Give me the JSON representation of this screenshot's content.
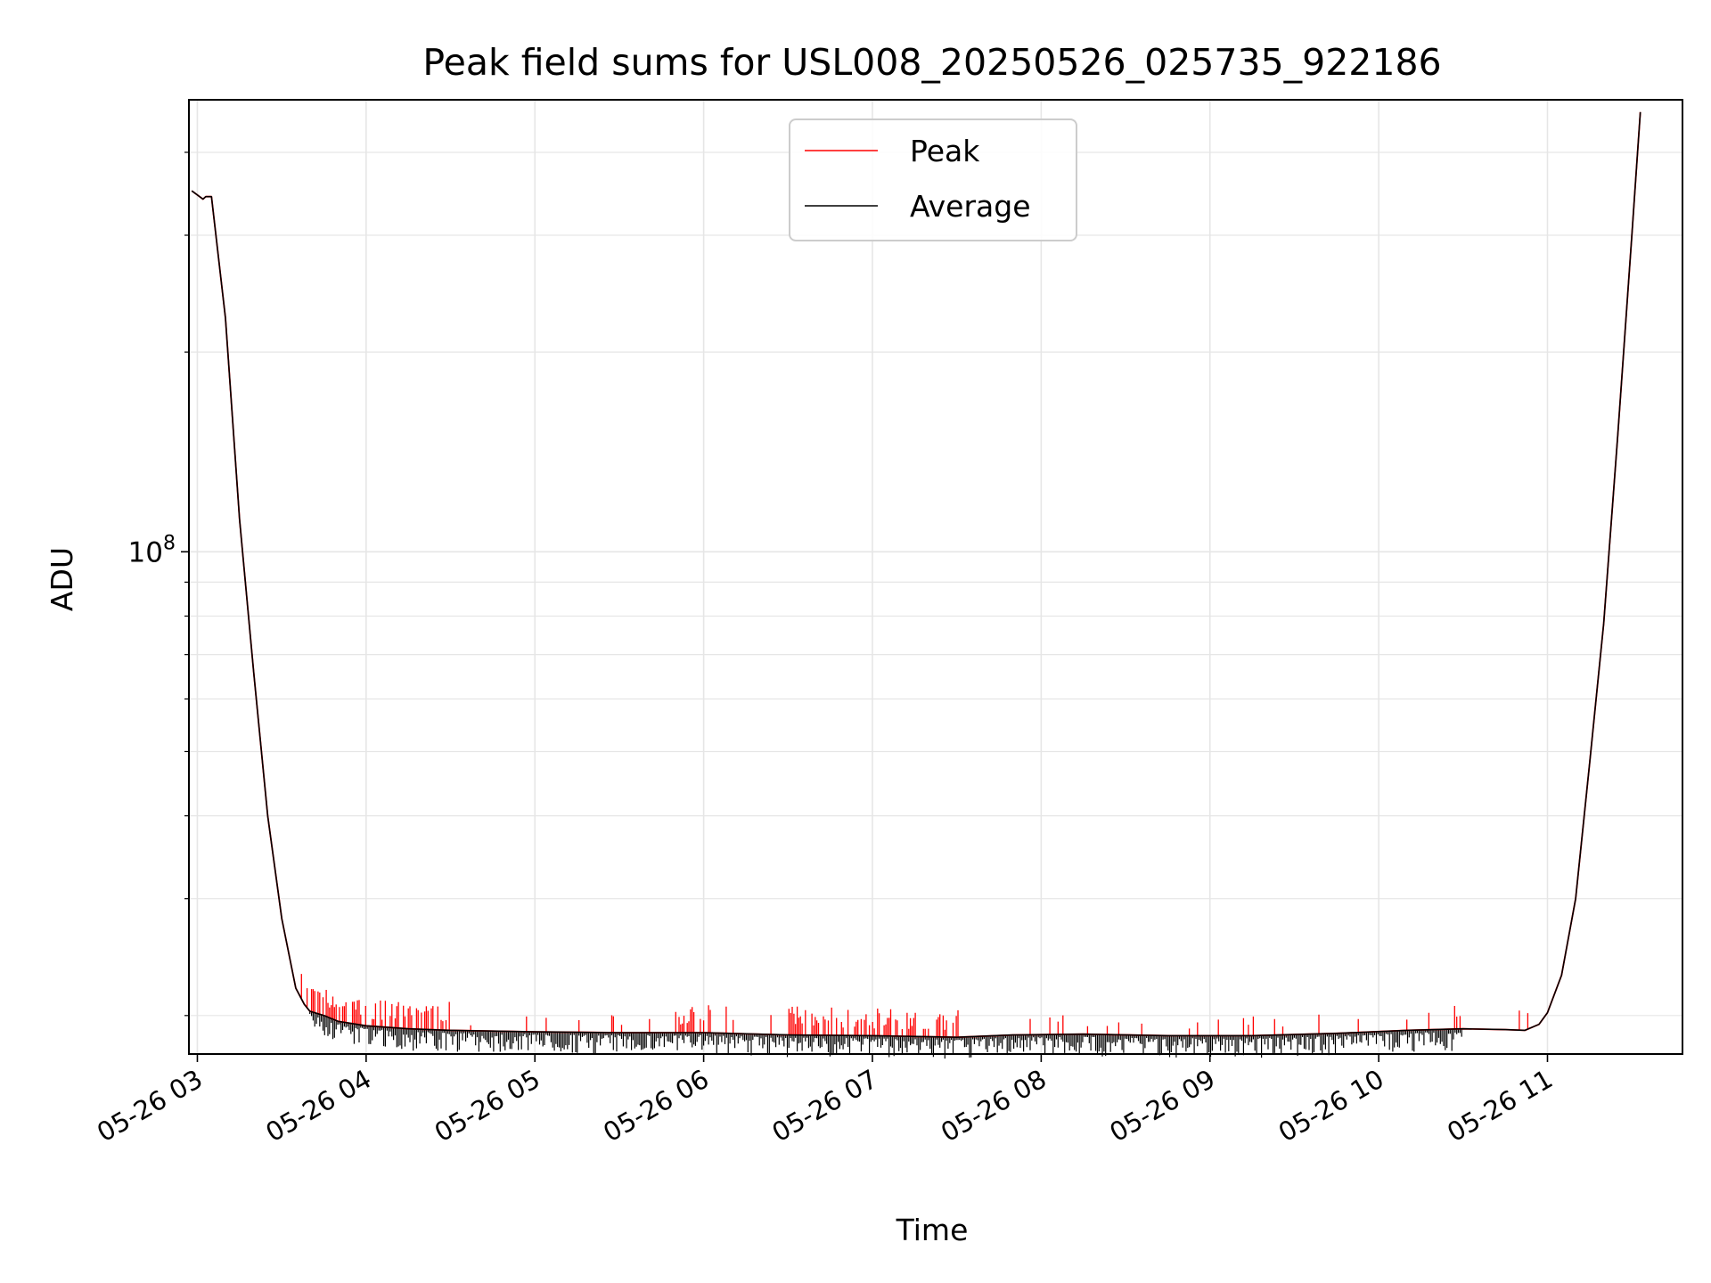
{
  "chart_data": {
    "type": "line",
    "title": "Peak field sums for USL008_20250526_025735_922186",
    "xlabel": "Time",
    "ylabel": "ADU",
    "y_scale": "log",
    "xlim": [
      "2025-05-26T02:57",
      "2025-05-26T11:48"
    ],
    "ylim": [
      17500000,
      480000000
    ],
    "grid": true,
    "grid_color": "#e6e6e6",
    "legend_position": "upper center",
    "x_ticks": [
      {
        "t": "2025-05-26T03:00",
        "label": "05-26 03"
      },
      {
        "t": "2025-05-26T04:00",
        "label": "05-26 04"
      },
      {
        "t": "2025-05-26T05:00",
        "label": "05-26 05"
      },
      {
        "t": "2025-05-26T06:00",
        "label": "05-26 06"
      },
      {
        "t": "2025-05-26T07:00",
        "label": "05-26 07"
      },
      {
        "t": "2025-05-26T08:00",
        "label": "05-26 08"
      },
      {
        "t": "2025-05-26T09:00",
        "label": "05-26 09"
      },
      {
        "t": "2025-05-26T10:00",
        "label": "05-26 10"
      },
      {
        "t": "2025-05-26T11:00",
        "label": "05-26 11"
      }
    ],
    "y_major_ticks": [
      {
        "value": 100000000,
        "label_base": "10",
        "label_exp": "8"
      }
    ],
    "y_minor_ticks": [
      20000000,
      30000000,
      40000000,
      50000000,
      60000000,
      70000000,
      80000000,
      90000000,
      200000000,
      300000000,
      400000000
    ],
    "series": [
      {
        "name": "Peak",
        "color": "#ff0000",
        "x": [
          "2025-05-26T02:58",
          "2025-05-26T03:02",
          "2025-05-26T03:03",
          "2025-05-26T03:05",
          "2025-05-26T03:10",
          "2025-05-26T03:15",
          "2025-05-26T03:20",
          "2025-05-26T03:25",
          "2025-05-26T03:30",
          "2025-05-26T03:35",
          "2025-05-26T03:38",
          "2025-05-26T03:40",
          "2025-05-26T03:45",
          "2025-05-26T03:50",
          "2025-05-26T04:00",
          "2025-05-26T04:15",
          "2025-05-26T04:30",
          "2025-05-26T05:00",
          "2025-05-26T05:30",
          "2025-05-26T06:00",
          "2025-05-26T06:30",
          "2025-05-26T07:00",
          "2025-05-26T07:30",
          "2025-05-26T07:50",
          "2025-05-26T08:15",
          "2025-05-26T08:45",
          "2025-05-26T09:15",
          "2025-05-26T09:45",
          "2025-05-26T10:10",
          "2025-05-26T10:30",
          "2025-05-26T10:45",
          "2025-05-26T10:52",
          "2025-05-26T10:57",
          "2025-05-26T11:00",
          "2025-05-26T11:05",
          "2025-05-26T11:10",
          "2025-05-26T11:15",
          "2025-05-26T11:20",
          "2025-05-26T11:25",
          "2025-05-26T11:30",
          "2025-05-26T11:33"
        ],
        "y": [
          350000000,
          340000000,
          343000000,
          343000000,
          225000000,
          112000000,
          66000000,
          40000000,
          28000000,
          22000000,
          20800000,
          20300000,
          20000000,
          19600000,
          19300000,
          19100000,
          19000000,
          18900000,
          18850000,
          18850000,
          18700000,
          18650000,
          18550000,
          18700000,
          18750000,
          18650000,
          18650000,
          18800000,
          19000000,
          19100000,
          19050000,
          19000000,
          19400000,
          20200000,
          23000000,
          30000000,
          48000000,
          78000000,
          150000000,
          300000000,
          460000000
        ]
      },
      {
        "name": "Average",
        "color": "#000000",
        "x": [
          "2025-05-26T02:58",
          "2025-05-26T03:02",
          "2025-05-26T03:03",
          "2025-05-26T03:05",
          "2025-05-26T03:10",
          "2025-05-26T03:15",
          "2025-05-26T03:20",
          "2025-05-26T03:25",
          "2025-05-26T03:30",
          "2025-05-26T03:35",
          "2025-05-26T03:38",
          "2025-05-26T03:40",
          "2025-05-26T03:45",
          "2025-05-26T03:50",
          "2025-05-26T04:00",
          "2025-05-26T04:15",
          "2025-05-26T04:30",
          "2025-05-26T05:00",
          "2025-05-26T05:30",
          "2025-05-26T06:00",
          "2025-05-26T06:30",
          "2025-05-26T07:00",
          "2025-05-26T07:30",
          "2025-05-26T07:50",
          "2025-05-26T08:15",
          "2025-05-26T08:45",
          "2025-05-26T09:15",
          "2025-05-26T09:45",
          "2025-05-26T10:10",
          "2025-05-26T10:30",
          "2025-05-26T10:45",
          "2025-05-26T10:52",
          "2025-05-26T10:57",
          "2025-05-26T11:00",
          "2025-05-26T11:05",
          "2025-05-26T11:10",
          "2025-05-26T11:15",
          "2025-05-26T11:20",
          "2025-05-26T11:25",
          "2025-05-26T11:30",
          "2025-05-26T11:33"
        ],
        "y": [
          350000000,
          340000000,
          343000000,
          343000000,
          225000000,
          112000000,
          66000000,
          40000000,
          28000000,
          22000000,
          20800000,
          20300000,
          20000000,
          19600000,
          19300000,
          19100000,
          19000000,
          18900000,
          18850000,
          18850000,
          18700000,
          18650000,
          18550000,
          18700000,
          18750000,
          18650000,
          18650000,
          18800000,
          19000000,
          19100000,
          19050000,
          19000000,
          19400000,
          20200000,
          23000000,
          30000000,
          48000000,
          78000000,
          150000000,
          300000000,
          460000000
        ]
      }
    ]
  }
}
